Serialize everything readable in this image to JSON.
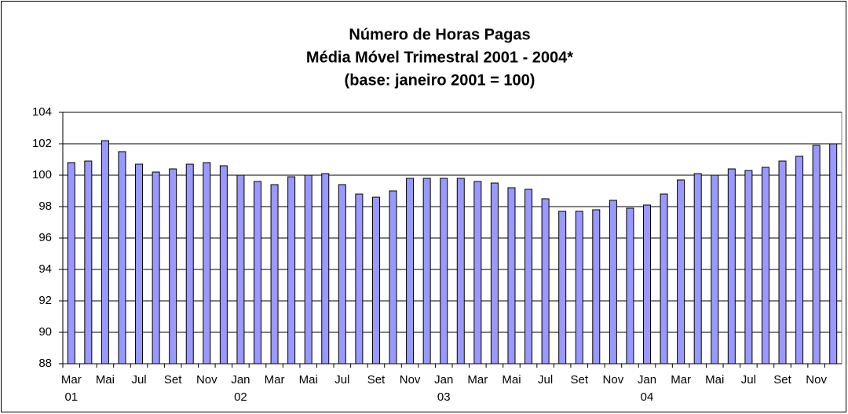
{
  "chart_data": {
    "type": "bar",
    "title": [
      "Número de Horas Pagas",
      "Média Móvel Trimestral  2001 - 2004*",
      "(base: janeiro 2001 = 100)"
    ],
    "categories": [
      [
        "Mar",
        "01"
      ],
      null,
      [
        "Mai"
      ],
      null,
      [
        "Jul"
      ],
      null,
      [
        "Set"
      ],
      null,
      [
        "Nov"
      ],
      null,
      [
        "Jan",
        "02"
      ],
      null,
      [
        "Mar"
      ],
      null,
      [
        "Mai"
      ],
      null,
      [
        "Jul"
      ],
      null,
      [
        "Set"
      ],
      null,
      [
        "Nov"
      ],
      null,
      [
        "Jan",
        "03"
      ],
      null,
      [
        "Mar"
      ],
      null,
      [
        "Mai"
      ],
      null,
      [
        "Jul"
      ],
      null,
      [
        "Set"
      ],
      null,
      [
        "Nov"
      ],
      null,
      [
        "Jan",
        "04"
      ],
      null,
      [
        "Mar"
      ],
      null,
      [
        "Mai"
      ],
      null,
      [
        "Jul"
      ],
      null,
      [
        "Set"
      ],
      null,
      [
        "Nov"
      ],
      null
    ],
    "values": [
      100.8,
      100.9,
      102.2,
      101.5,
      100.7,
      100.2,
      100.4,
      100.7,
      100.8,
      100.6,
      100.0,
      99.6,
      99.4,
      99.9,
      100.0,
      100.1,
      99.4,
      98.8,
      98.6,
      99.0,
      99.8,
      99.8,
      99.8,
      99.8,
      99.6,
      99.5,
      99.2,
      99.1,
      98.5,
      97.7,
      97.7,
      97.8,
      98.4,
      97.9,
      98.1,
      98.8,
      99.7,
      100.1,
      100.0,
      100.4,
      100.3,
      100.5,
      100.9,
      101.2,
      101.9,
      102.0
    ],
    "color": "#9999ff",
    "ylim": [
      88,
      104
    ],
    "yticks": [
      88,
      90,
      92,
      94,
      96,
      98,
      100,
      102,
      104
    ],
    "grid": true
  }
}
